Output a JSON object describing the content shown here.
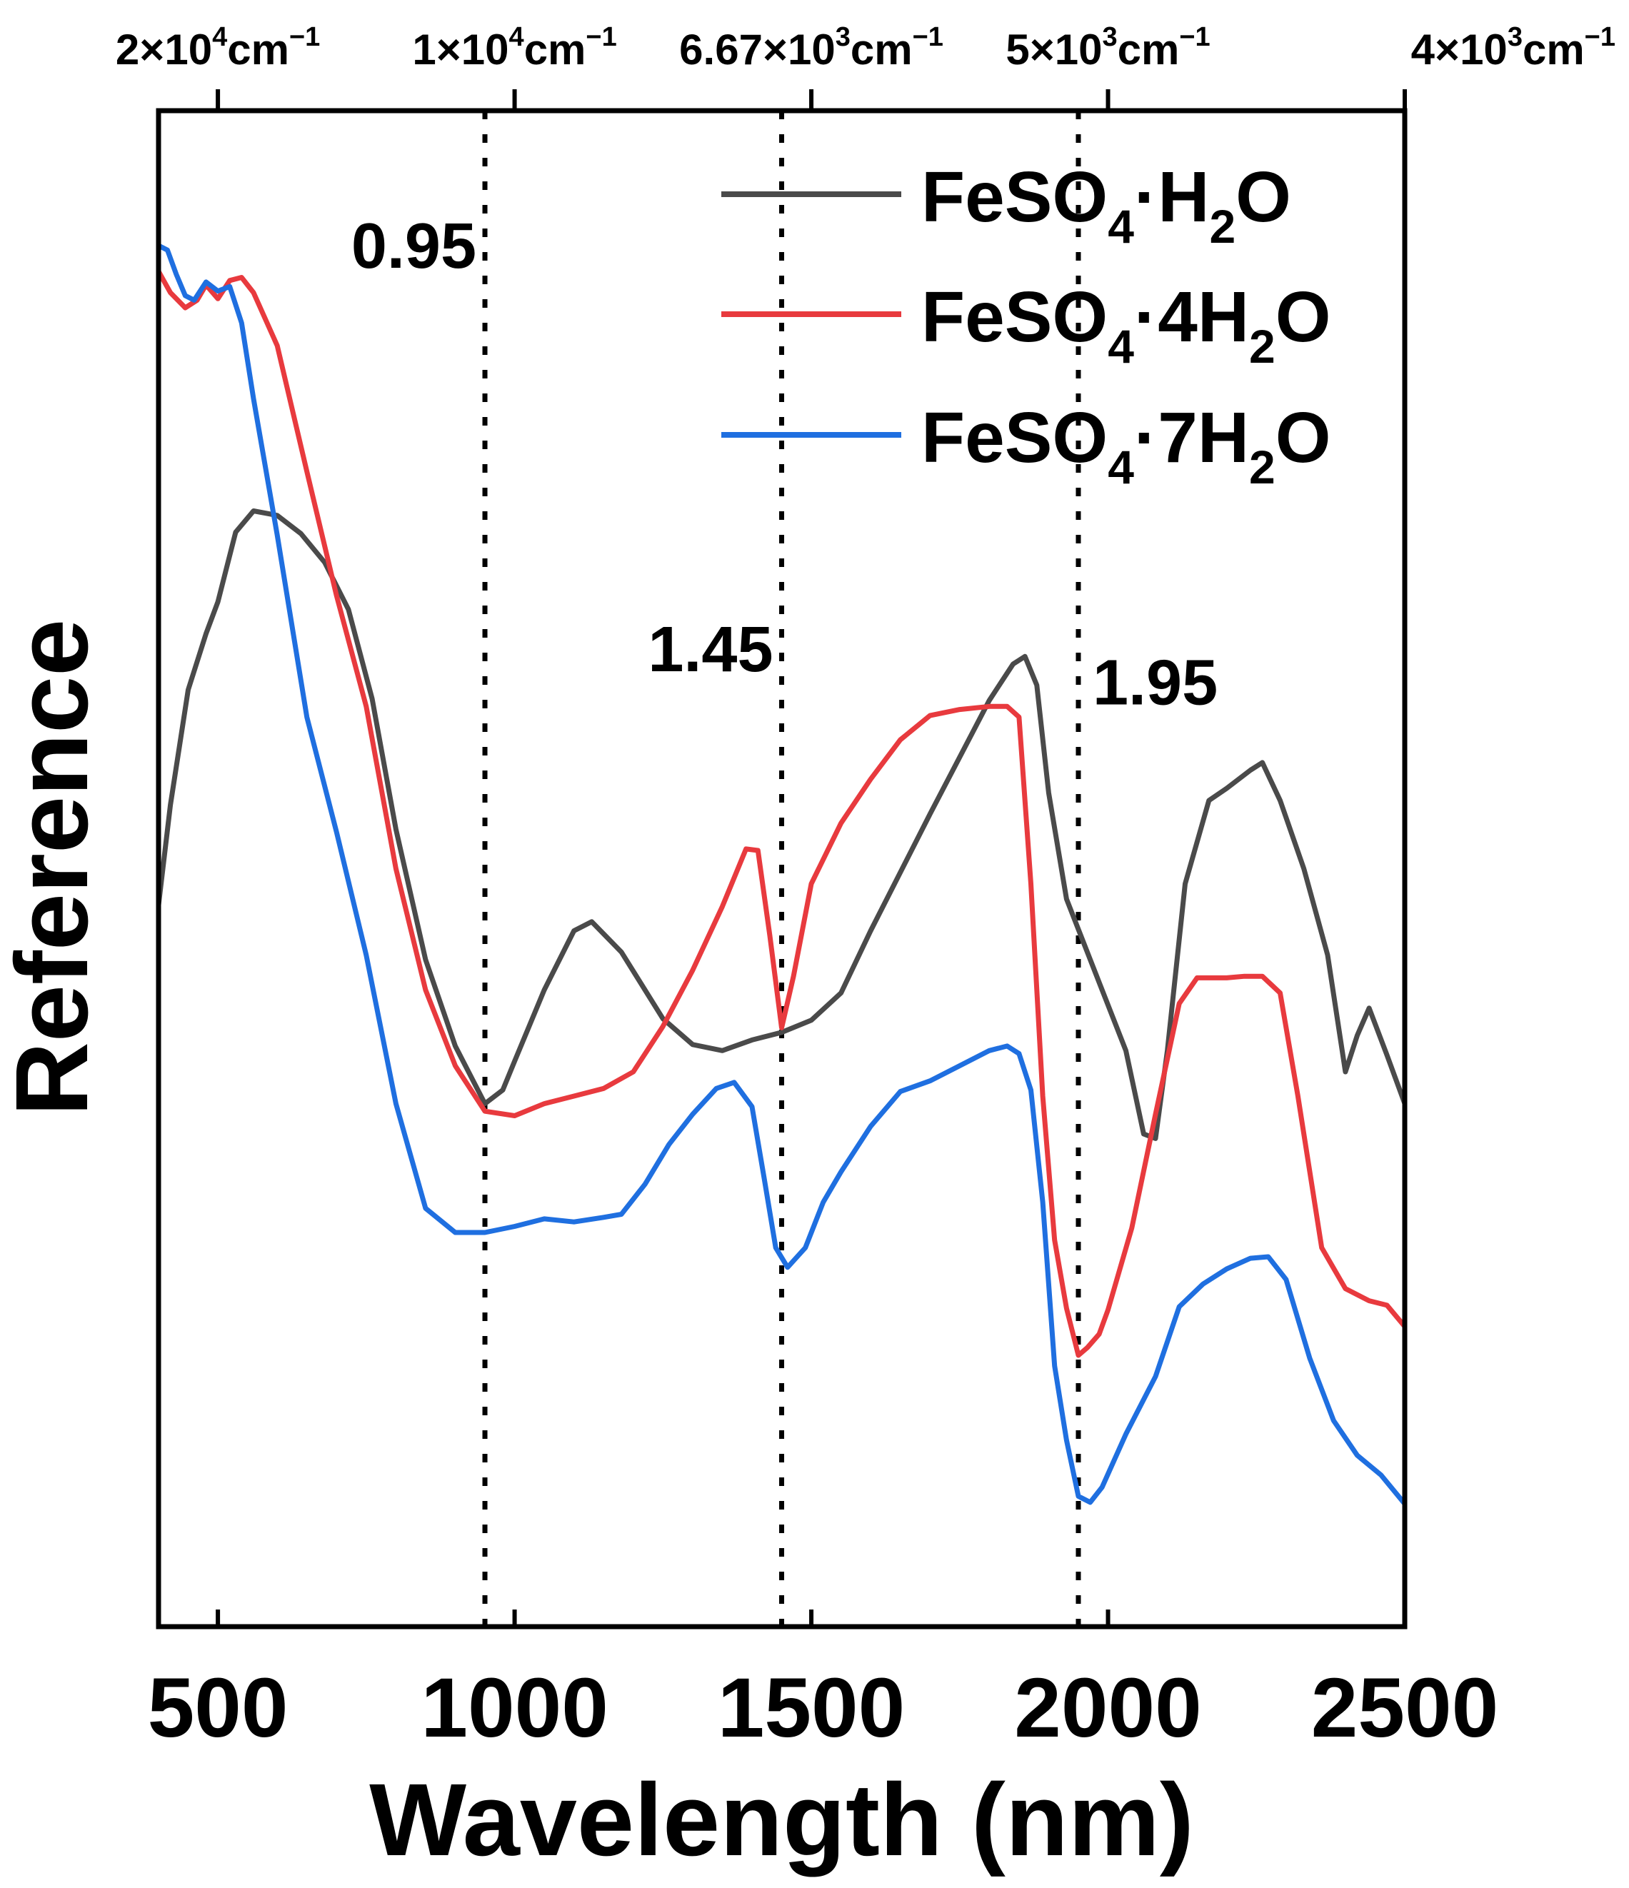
{
  "chart_data": {
    "type": "line",
    "title": "",
    "xlabel": "Wavelength (nm)",
    "ylabel": "Reference",
    "xlim": [
      400,
      2500
    ],
    "ylim": [
      0,
      1
    ],
    "grid": false,
    "legend_position": "top-right",
    "x_ticks": [
      500,
      1000,
      1500,
      2000,
      2500
    ],
    "top_axis": {
      "ticks": [
        {
          "wavelength_nm": 500,
          "mantissa": "2×10",
          "exp": "4",
          "unit": "cm",
          "unit_exp": "−1"
        },
        {
          "wavelength_nm": 1000,
          "mantissa": "1×10",
          "exp": "4",
          "unit": "cm",
          "unit_exp": "−1"
        },
        {
          "wavelength_nm": 1500,
          "mantissa": "6.67×10",
          "exp": "3",
          "unit": "cm",
          "unit_exp": "−1"
        },
        {
          "wavelength_nm": 2000,
          "mantissa": "5×10",
          "exp": "3",
          "unit": "cm",
          "unit_exp": "−1"
        },
        {
          "wavelength_nm": 2500,
          "mantissa": "4×10",
          "exp": "3",
          "unit": "cm",
          "unit_exp": "−1"
        }
      ]
    },
    "reference_lines": [
      {
        "x": 950,
        "label": "0.95",
        "label_y": 0.917
      },
      {
        "x": 1450,
        "label": "1.45",
        "label_y": 0.651
      },
      {
        "x": 1950,
        "label": "1.95",
        "label_y": 0.629
      }
    ],
    "series": [
      {
        "name_main": "FeSO",
        "name_sub1": "4",
        "name_mid": "·H",
        "name_sub2": "2",
        "name_end": "O",
        "color": "#4a4a4a",
        "x": [
          400,
          420,
          450,
          480,
          500,
          530,
          560,
          600,
          640,
          680,
          720,
          760,
          800,
          850,
          900,
          950,
          980,
          1000,
          1050,
          1100,
          1130,
          1180,
          1250,
          1300,
          1350,
          1400,
          1450,
          1500,
          1550,
          1600,
          1700,
          1800,
          1840,
          1860,
          1880,
          1900,
          1930,
          1960,
          1990,
          2030,
          2060,
          2080,
          2100,
          2130,
          2170,
          2200,
          2240,
          2260,
          2290,
          2330,
          2370,
          2400,
          2420,
          2440,
          2470,
          2500
        ],
        "y": [
          0.476,
          0.542,
          0.618,
          0.655,
          0.676,
          0.722,
          0.736,
          0.733,
          0.721,
          0.702,
          0.671,
          0.612,
          0.526,
          0.44,
          0.383,
          0.345,
          0.354,
          0.373,
          0.42,
          0.459,
          0.465,
          0.445,
          0.401,
          0.384,
          0.38,
          0.387,
          0.392,
          0.4,
          0.418,
          0.459,
          0.536,
          0.611,
          0.635,
          0.64,
          0.621,
          0.55,
          0.48,
          0.45,
          0.42,
          0.38,
          0.325,
          0.322,
          0.38,
          0.49,
          0.545,
          0.553,
          0.565,
          0.57,
          0.545,
          0.5,
          0.443,
          0.366,
          0.39,
          0.408,
          0.377,
          0.345
        ]
      },
      {
        "name_main": "FeSO",
        "name_sub1": "4",
        "name_mid": "·4H",
        "name_sub2": "2",
        "name_end": "O",
        "color": "#e83a3e",
        "x": [
          400,
          420,
          445,
          465,
          480,
          500,
          520,
          540,
          560,
          600,
          650,
          700,
          750,
          800,
          850,
          900,
          950,
          1000,
          1050,
          1100,
          1150,
          1200,
          1250,
          1300,
          1350,
          1390,
          1410,
          1430,
          1450,
          1470,
          1500,
          1550,
          1600,
          1650,
          1700,
          1750,
          1800,
          1830,
          1850,
          1870,
          1890,
          1910,
          1930,
          1950,
          1965,
          1985,
          2000,
          2040,
          2080,
          2120,
          2150,
          2180,
          2200,
          2230,
          2260,
          2290,
          2320,
          2360,
          2400,
          2440,
          2470,
          2500
        ],
        "y": [
          0.894,
          0.88,
          0.87,
          0.875,
          0.885,
          0.876,
          0.888,
          0.89,
          0.88,
          0.845,
          0.762,
          0.68,
          0.607,
          0.5,
          0.42,
          0.37,
          0.34,
          0.337,
          0.345,
          0.35,
          0.355,
          0.366,
          0.396,
          0.433,
          0.475,
          0.513,
          0.512,
          0.456,
          0.395,
          0.429,
          0.49,
          0.53,
          0.559,
          0.585,
          0.601,
          0.605,
          0.607,
          0.607,
          0.6,
          0.49,
          0.35,
          0.255,
          0.21,
          0.179,
          0.184,
          0.193,
          0.209,
          0.263,
          0.338,
          0.411,
          0.428,
          0.428,
          0.428,
          0.429,
          0.429,
          0.418,
          0.35,
          0.25,
          0.223,
          0.215,
          0.212,
          0.198
        ]
      },
      {
        "name_main": "FeSO",
        "name_sub1": "4",
        "name_mid": "·7H",
        "name_sub2": "2",
        "name_end": "O",
        "color": "#1f6fe0",
        "x": [
          400,
          415,
          430,
          445,
          460,
          480,
          500,
          520,
          540,
          560,
          600,
          650,
          700,
          750,
          800,
          850,
          900,
          950,
          1000,
          1050,
          1100,
          1150,
          1180,
          1220,
          1260,
          1300,
          1340,
          1370,
          1400,
          1420,
          1440,
          1460,
          1490,
          1520,
          1550,
          1600,
          1650,
          1700,
          1750,
          1800,
          1830,
          1850,
          1870,
          1890,
          1910,
          1930,
          1950,
          1970,
          1990,
          2030,
          2080,
          2120,
          2160,
          2200,
          2240,
          2270,
          2300,
          2340,
          2380,
          2420,
          2460,
          2500
        ],
        "y": [
          0.911,
          0.908,
          0.892,
          0.878,
          0.875,
          0.887,
          0.881,
          0.884,
          0.86,
          0.81,
          0.72,
          0.6,
          0.524,
          0.443,
          0.345,
          0.276,
          0.26,
          0.26,
          0.264,
          0.269,
          0.267,
          0.27,
          0.272,
          0.292,
          0.318,
          0.338,
          0.355,
          0.359,
          0.343,
          0.297,
          0.25,
          0.237,
          0.25,
          0.28,
          0.3,
          0.33,
          0.353,
          0.36,
          0.37,
          0.38,
          0.383,
          0.378,
          0.354,
          0.28,
          0.172,
          0.123,
          0.086,
          0.082,
          0.092,
          0.127,
          0.165,
          0.211,
          0.226,
          0.236,
          0.243,
          0.244,
          0.229,
          0.177,
          0.136,
          0.113,
          0.1,
          0.081
        ]
      }
    ]
  }
}
